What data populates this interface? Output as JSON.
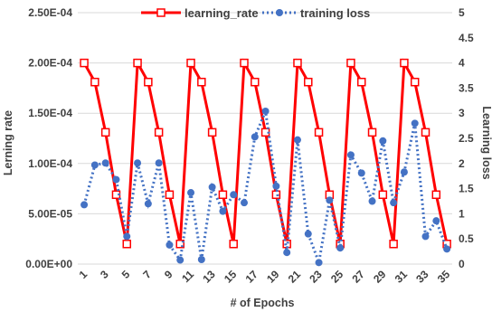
{
  "chart_data": {
    "type": "line",
    "xlabel": "# of Epochs",
    "ylabel_left": "Lerning rate",
    "ylabel_right": "Learning loss",
    "x": [
      1,
      2,
      3,
      4,
      5,
      6,
      7,
      8,
      9,
      10,
      11,
      12,
      13,
      14,
      15,
      16,
      17,
      18,
      19,
      20,
      21,
      22,
      23,
      24,
      25,
      26,
      27,
      28,
      29,
      30,
      31,
      32,
      33,
      34,
      35
    ],
    "x_tick_labels": [
      "1",
      "3",
      "5",
      "7",
      "9",
      "11",
      "13",
      "15",
      "17",
      "19",
      "21",
      "23",
      "25",
      "27",
      "29",
      "31",
      "33",
      "35"
    ],
    "y_left_range": [
      0,
      0.00025
    ],
    "y_left_ticks": [
      "0.00E+00",
      "5.00E-05",
      "1.00E-04",
      "1.50E-04",
      "2.00E-04",
      "2.50E-04"
    ],
    "y_right_range": [
      0,
      5
    ],
    "y_right_ticks": [
      "0",
      "0.5",
      "1",
      "1.5",
      "2",
      "2.5",
      "3",
      "3.5",
      "4",
      "4.5",
      "5"
    ],
    "legend_position": "top",
    "series": [
      {
        "name": "learning_rate",
        "axis": "left",
        "color": "#ff0000",
        "style": "solid",
        "marker": "square",
        "values": [
          0.0002,
          0.000181,
          0.000131,
          6.9e-05,
          2e-05,
          0.0002,
          0.000181,
          0.000131,
          6.9e-05,
          2e-05,
          0.0002,
          0.000181,
          0.000131,
          6.9e-05,
          2e-05,
          0.0002,
          0.000181,
          0.000131,
          6.9e-05,
          2e-05,
          0.0002,
          0.000181,
          0.000131,
          6.9e-05,
          2e-05,
          0.0002,
          0.000181,
          0.000131,
          6.9e-05,
          2e-05,
          0.0002,
          0.000181,
          0.000131,
          6.9e-05,
          2e-05
        ]
      },
      {
        "name": "training loss",
        "axis": "right",
        "color": "#4472c4",
        "style": "dotted",
        "marker": "circle",
        "values": [
          1.18,
          1.97,
          2.01,
          1.68,
          0.55,
          2.01,
          1.2,
          2.01,
          0.38,
          0.08,
          1.42,
          0.09,
          1.53,
          1.05,
          1.38,
          1.22,
          2.53,
          3.04,
          1.55,
          0.23,
          2.47,
          0.6,
          0.03,
          1.27,
          0.32,
          2.17,
          1.81,
          1.25,
          2.45,
          1.22,
          1.83,
          2.8,
          0.55,
          0.86,
          0.3
        ]
      }
    ]
  }
}
